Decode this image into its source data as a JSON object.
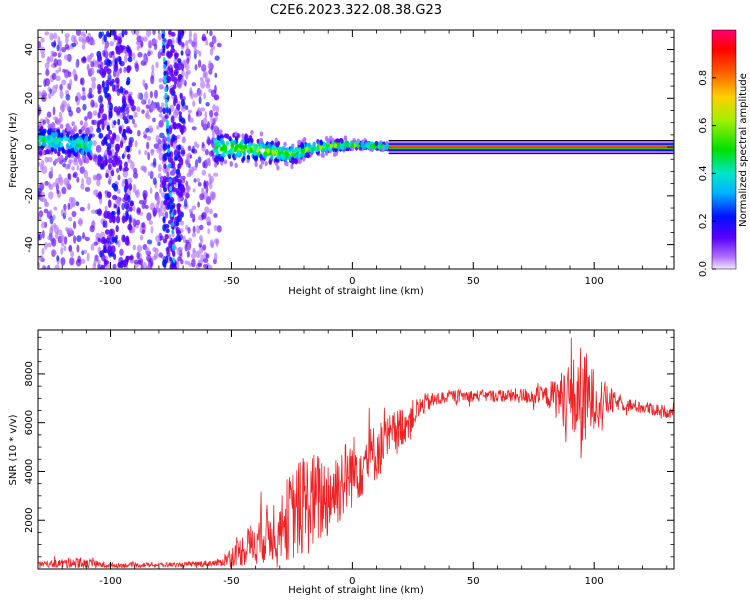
{
  "title": "C2E6.2023.322.08.38.G23",
  "chart_data": [
    {
      "type": "heatmap",
      "xlabel": "Height of straight line (km)",
      "ylabel": "Frequency (Hz)",
      "xlim": [
        -130,
        133
      ],
      "ylim": [
        -50,
        48
      ],
      "x_ticks": [
        -100,
        -50,
        0,
        50,
        100
      ],
      "y_ticks": [
        -40,
        -20,
        0,
        20,
        40
      ],
      "colorbar": {
        "label": "Normalized spectral amplitude",
        "range": [
          0,
          1
        ],
        "ticks": [
          0.0,
          0.2,
          0.4,
          0.6,
          0.8
        ],
        "colors": [
          "#f2e6ff",
          "#b070ff",
          "#5a00ff",
          "#0010ff",
          "#00b4ff",
          "#00e6c8",
          "#00e000",
          "#a0f000",
          "#ffd000",
          "#ff6000",
          "#ff0000",
          "#ff0070"
        ]
      },
      "ridge": [
        {
          "x": -130,
          "f": 3
        },
        {
          "x": -110,
          "f": 1
        },
        {
          "x": -57,
          "f": 0
        },
        {
          "x": -40,
          "f": -1
        },
        {
          "x": -25,
          "f": -3
        },
        {
          "x": -15,
          "f": 0
        },
        {
          "x": 0,
          "f": 1
        },
        {
          "x": 20,
          "f": 0
        },
        {
          "x": 133,
          "f": 0
        }
      ]
    },
    {
      "type": "line",
      "xlabel": "Height of straight line (km)",
      "ylabel": "SNR (10 * v/v)",
      "xlim": [
        -130,
        133
      ],
      "ylim": [
        0,
        9800
      ],
      "x_ticks": [
        -100,
        -50,
        0,
        50,
        100
      ],
      "y_ticks": [
        2000,
        4000,
        6000,
        8000
      ],
      "series_color": "#ee2222",
      "envelope": [
        {
          "x": -130,
          "y": 200,
          "a": 100
        },
        {
          "x": -115,
          "y": 250,
          "a": 250
        },
        {
          "x": -100,
          "y": 150,
          "a": 100
        },
        {
          "x": -70,
          "y": 180,
          "a": 100
        },
        {
          "x": -55,
          "y": 250,
          "a": 150
        },
        {
          "x": -45,
          "y": 800,
          "a": 700
        },
        {
          "x": -30,
          "y": 1800,
          "a": 1500
        },
        {
          "x": -20,
          "y": 2600,
          "a": 2200
        },
        {
          "x": -10,
          "y": 3000,
          "a": 1800
        },
        {
          "x": 0,
          "y": 4000,
          "a": 1500
        },
        {
          "x": 10,
          "y": 4800,
          "a": 1200
        },
        {
          "x": 20,
          "y": 5800,
          "a": 900
        },
        {
          "x": 30,
          "y": 6800,
          "a": 400
        },
        {
          "x": 40,
          "y": 7100,
          "a": 250
        },
        {
          "x": 60,
          "y": 7100,
          "a": 250
        },
        {
          "x": 80,
          "y": 7100,
          "a": 400
        },
        {
          "x": 90,
          "y": 7000,
          "a": 1500
        },
        {
          "x": 95,
          "y": 6800,
          "a": 2500
        },
        {
          "x": 100,
          "y": 7000,
          "a": 1200
        },
        {
          "x": 110,
          "y": 6800,
          "a": 300
        },
        {
          "x": 133,
          "y": 6400,
          "a": 250
        }
      ]
    }
  ]
}
